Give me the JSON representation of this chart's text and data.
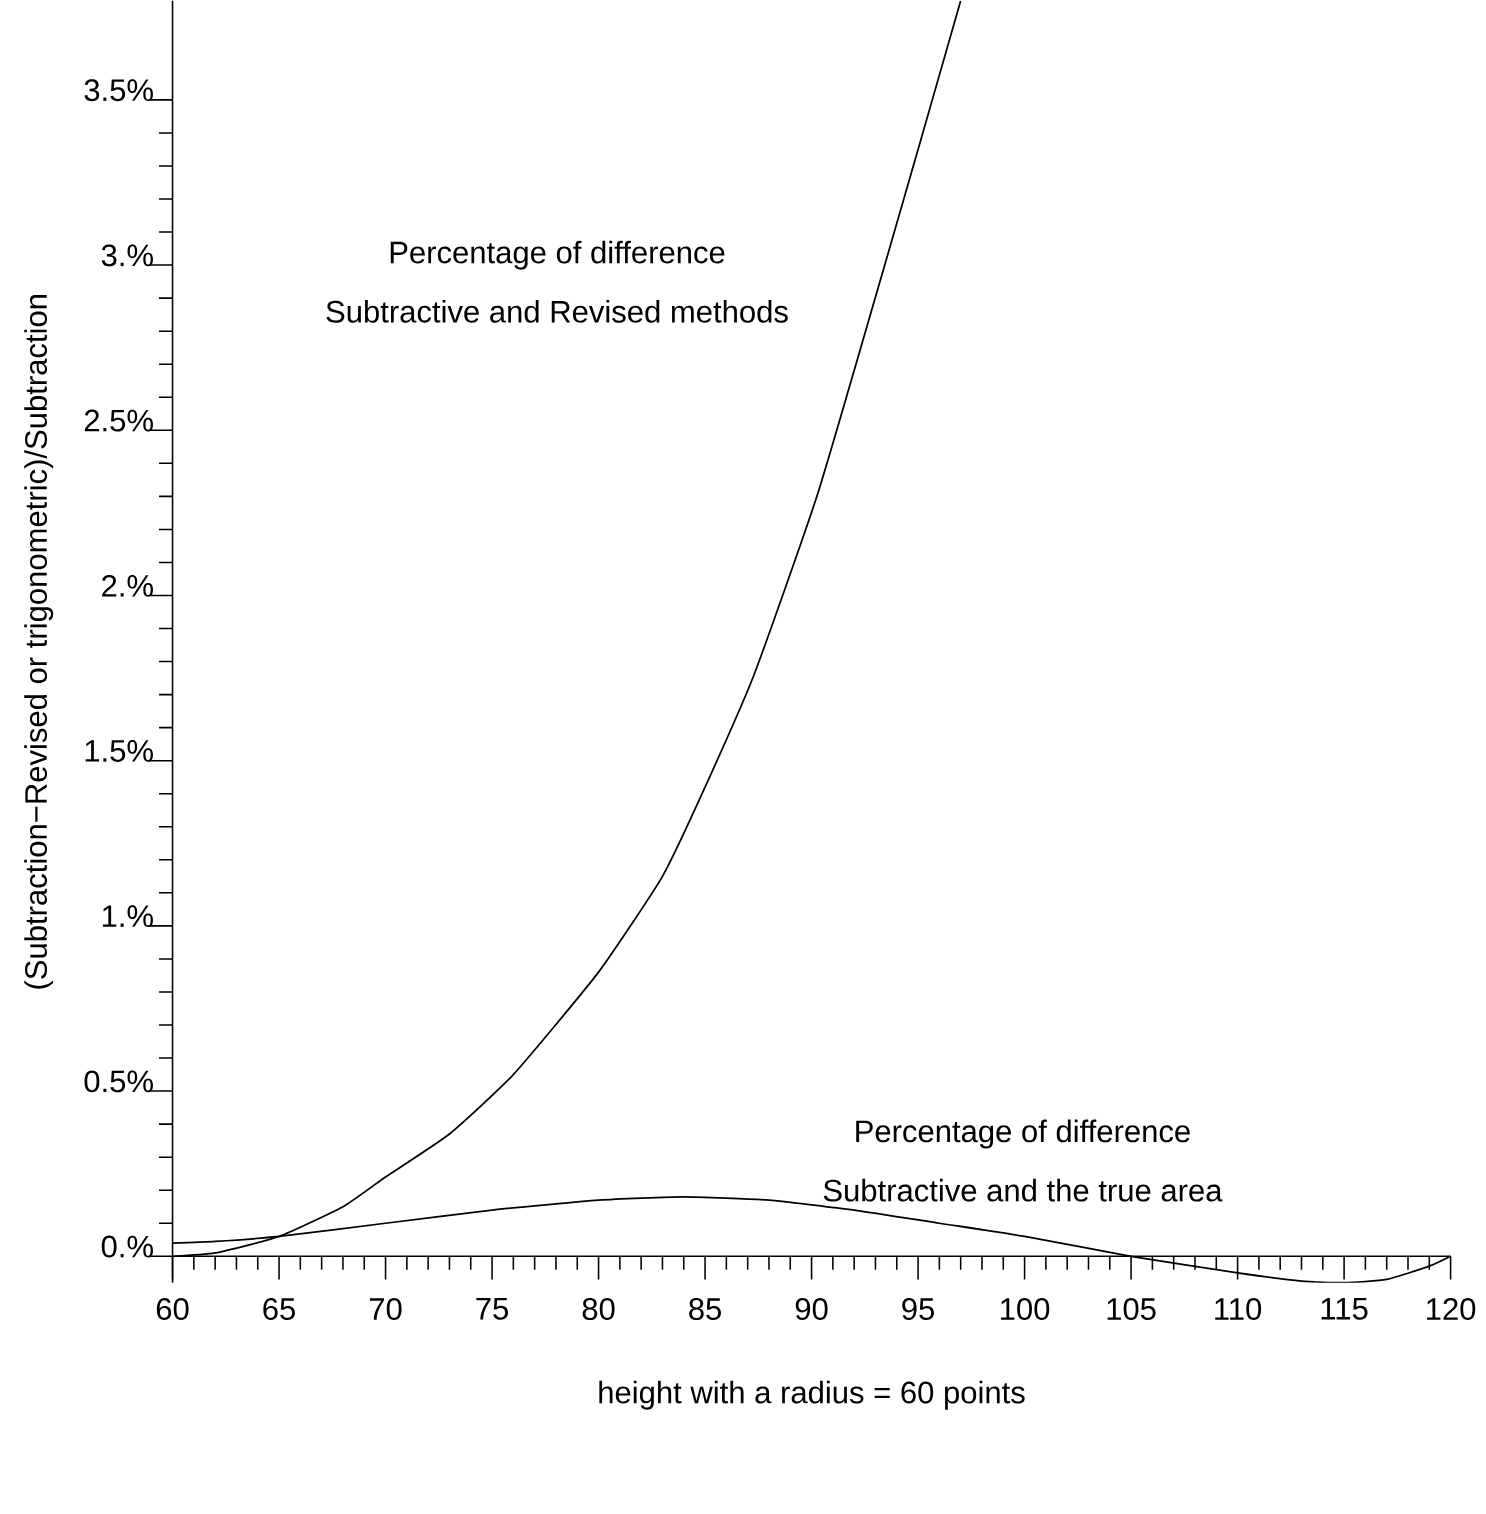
{
  "chart_data": {
    "type": "line",
    "xlabel": "height with a radius = 60 points",
    "ylabel": "(Subtraction−Revised or trigonometric)/Subtraction",
    "xlim": [
      60,
      120
    ],
    "ylim": [
      -0.08,
      3.8
    ],
    "xticks": [
      60,
      65,
      70,
      75,
      80,
      85,
      90,
      95,
      100,
      105,
      110,
      115,
      120
    ],
    "yticks": [
      {
        "value": 0,
        "label": "0.%"
      },
      {
        "value": 0.5,
        "label": "0.5%"
      },
      {
        "value": 1,
        "label": "1.%"
      },
      {
        "value": 1.5,
        "label": "1.5%"
      },
      {
        "value": 2,
        "label": "2.%"
      },
      {
        "value": 2.5,
        "label": "2.5%"
      },
      {
        "value": 3,
        "label": "3.%"
      },
      {
        "value": 3.5,
        "label": "3.5%"
      }
    ],
    "series": [
      {
        "color": "#000000",
        "x": [
          60,
          62,
          65,
          68,
          70,
          73,
          76,
          80,
          83,
          85,
          87.3,
          90.3,
          93.3,
          95,
          97
        ],
        "values": [
          0.0,
          0.01,
          0.06,
          0.15,
          0.24,
          0.37,
          0.55,
          0.86,
          1.15,
          1.42,
          1.76,
          2.31,
          2.97,
          3.35,
          3.8
        ]
      },
      {
        "color": "#000000",
        "x": [
          60,
          62,
          65,
          70,
          75,
          80,
          84,
          88,
          92,
          96,
          100,
          105,
          110,
          113,
          115,
          117,
          119,
          120
        ],
        "values": [
          0.04,
          0.045,
          0.06,
          0.1,
          0.14,
          0.17,
          0.18,
          0.17,
          0.14,
          0.1,
          0.06,
          0.0,
          -0.05,
          -0.075,
          -0.08,
          -0.07,
          -0.03,
          0.0
        ]
      }
    ],
    "annotations": [
      "Percentage of difference",
      "Subtractive and Revised methods",
      "Percentage of difference",
      "Subtractive and the true area"
    ]
  }
}
